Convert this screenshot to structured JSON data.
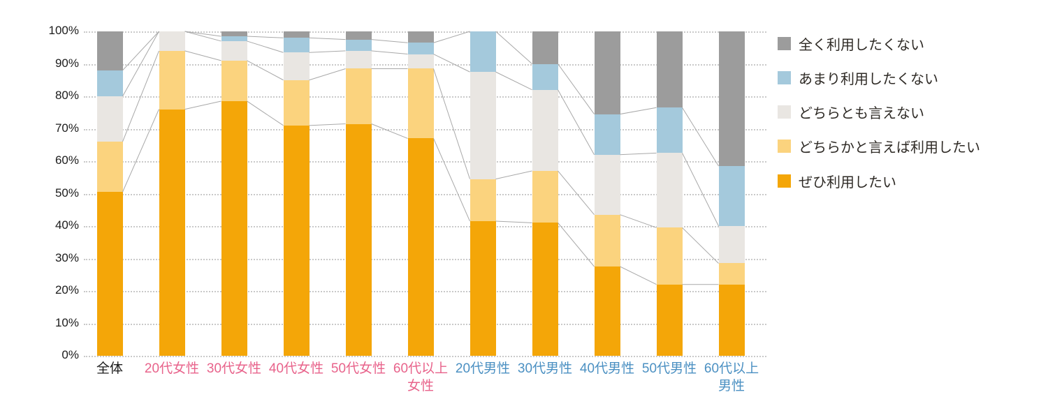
{
  "page": {
    "background": "#ffffff"
  },
  "colors": {
    "grid_dotted": "#c9c9c9",
    "connector_line": "#a8a8a8",
    "axis_text": "#1c1c1c",
    "legend_text": "#2e2a25",
    "female_label": "#e8638b",
    "male_label": "#4b90c2",
    "overall_label": "#1c1c1c"
  },
  "chart_data": {
    "type": "bar",
    "subtype": "stacked-100-percent-column",
    "title": "",
    "xlabel": "",
    "ylabel": "",
    "grid": "dotted-horizontal",
    "legend_position": "right",
    "categories": [
      "全体",
      "20代女性",
      "30代女性",
      "40代女性",
      "50代女性",
      "60代以上\n女性",
      "20代男性",
      "30代男性",
      "40代男性",
      "50代男性",
      "60代以上\n男性"
    ],
    "category_label_colors": [
      "#1c1c1c",
      "#e8638b",
      "#e8638b",
      "#e8638b",
      "#e8638b",
      "#e8638b",
      "#4b90c2",
      "#4b90c2",
      "#4b90c2",
      "#4b90c2",
      "#4b90c2"
    ],
    "series": [
      {
        "name": "ぜひ利用したい",
        "color": "#f4a608",
        "values": [
          50.5,
          76.0,
          78.5,
          71.0,
          71.5,
          67.0,
          41.5,
          41.0,
          27.5,
          22.0,
          22.0
        ]
      },
      {
        "name": "どちらかと言えば利用したい",
        "color": "#fbd37e",
        "values": [
          15.5,
          18.0,
          12.5,
          14.0,
          17.0,
          21.5,
          13.0,
          16.0,
          16.0,
          17.5,
          6.5
        ]
      },
      {
        "name": "どちらとも言えない",
        "color": "#e9e6e2",
        "values": [
          14.0,
          6.0,
          6.0,
          8.5,
          5.5,
          4.5,
          33.0,
          25.0,
          18.5,
          23.0,
          11.5
        ]
      },
      {
        "name": "あまり利用したくない",
        "color": "#a4c9dc",
        "values": [
          8.0,
          0.0,
          1.5,
          4.5,
          3.5,
          3.5,
          12.5,
          8.0,
          12.5,
          14.0,
          18.5
        ]
      },
      {
        "name": "全く利用したくない",
        "color": "#9c9c9c",
        "values": [
          12.0,
          0.0,
          1.5,
          2.0,
          2.5,
          3.5,
          0.0,
          10.0,
          25.5,
          23.5,
          41.5
        ]
      }
    ],
    "legend_order_top_to_bottom": [
      "全く利用したくない",
      "あまり利用したくない",
      "どちらとも言えない",
      "どちらかと言えば利用したい",
      "ぜひ利用したい"
    ],
    "y_axis": {
      "min": 0,
      "max": 100,
      "step": 10,
      "ticks": [
        "0%",
        "10%",
        "20%",
        "30%",
        "40%",
        "50%",
        "60%",
        "70%",
        "80%",
        "90%",
        "100%"
      ]
    },
    "connector_lines_between_bars": true
  }
}
